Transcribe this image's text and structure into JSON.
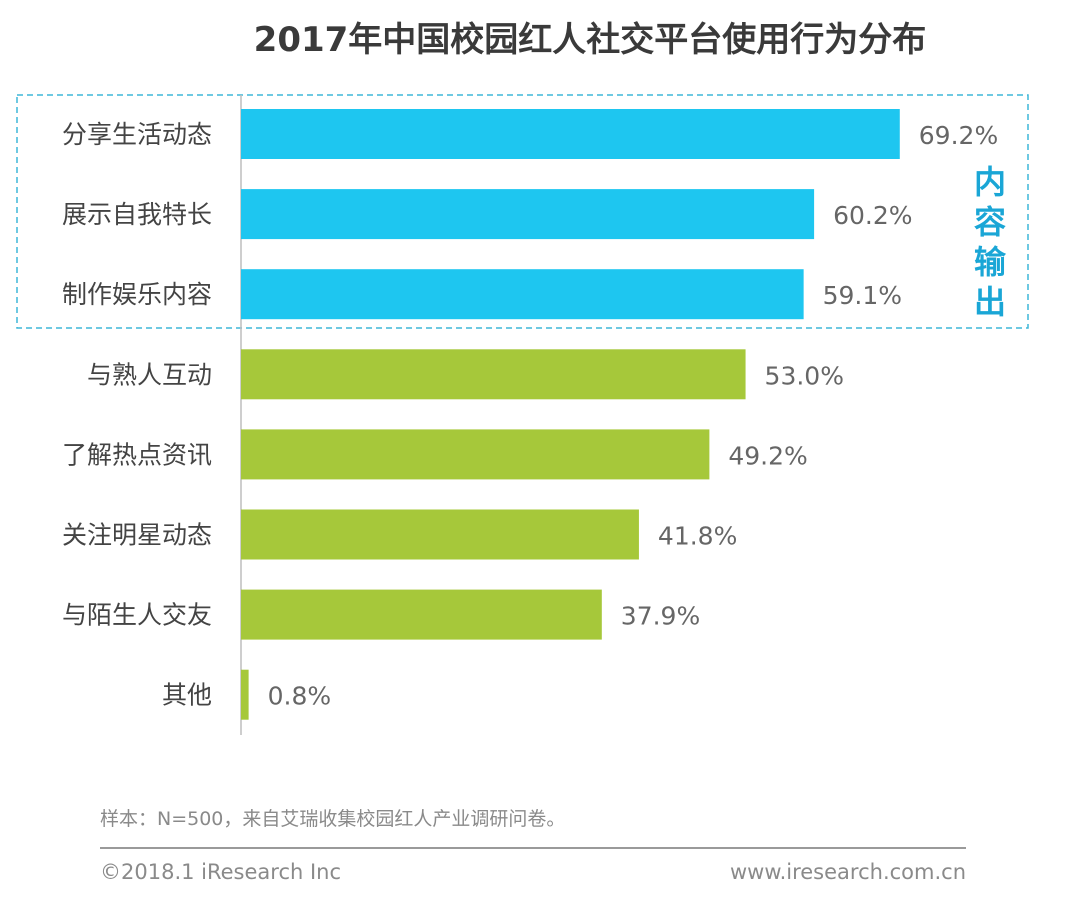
{
  "chart_data": {
    "type": "bar",
    "orientation": "horizontal",
    "title": "2017年中国校园红人社交平台使用行为分布",
    "categories": [
      "分享生活动态",
      "展示自我特长",
      "制作娱乐内容",
      "与熟人互动",
      "了解热点资讯",
      "关注明星动态",
      "与陌生人交友",
      "其他"
    ],
    "values": [
      69.2,
      60.2,
      59.1,
      53.0,
      49.2,
      41.8,
      37.9,
      0.8
    ],
    "value_labels": [
      "69.2%",
      "60.2%",
      "59.1%",
      "53.0%",
      "49.2%",
      "41.8%",
      "37.9%",
      "0.8%"
    ],
    "groups": [
      "content",
      "content",
      "content",
      "other",
      "other",
      "other",
      "other",
      "other"
    ],
    "group_annotation": "内容输出",
    "xlabel": "",
    "ylabel": "",
    "xlim": [
      0,
      100
    ],
    "grid": false,
    "colors": {
      "content": "#1ec6f0",
      "other": "#a6c83a",
      "annotation": "#1aa6d6"
    }
  },
  "footer": {
    "note": "样本：N=500，来自艾瑞收集校园红人产业调研问卷。",
    "copyright": "©2018.1 iResearch Inc",
    "url": "www.iresearch.com.cn"
  }
}
